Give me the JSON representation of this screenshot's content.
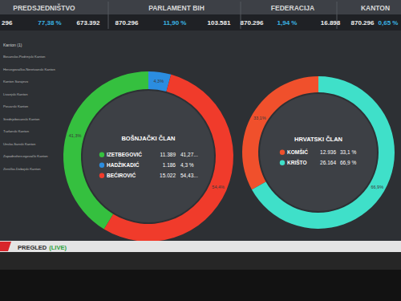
{
  "header": {
    "titles": [
      "PREDSJEDNIŠTVO",
      "PARLAMENT BIH",
      "FEDERACIJA",
      "KANTON"
    ],
    "cells": [
      "296",
      "77,38 %",
      "673.392",
      "870.296",
      "11,90 %",
      "103.581",
      "870.296",
      "1,94 %",
      "16.898",
      "870.296",
      "0,65 %"
    ]
  },
  "sidebar": {
    "title": "Kanton (1)",
    "items": [
      "Bosansko-Podrinjski Kanton",
      "Hercegovačko-Neretvanski Kanton",
      "Kanton Sarajevo",
      "Livanjski Kanton",
      "Posavski Kanton",
      "Srednjobosanski Kanton",
      "Tuzlanski Kanton",
      "Unsko-Sanski Kanton",
      "Zapadnohercegovački Kanton",
      "Zeničko-Dobojski Kanton"
    ]
  },
  "footer": {
    "label": "PREGLED",
    "status": "(LIVE)"
  },
  "chart_data": [
    {
      "type": "pie",
      "title": "BOŠNJAČKI ČLAN",
      "categories": [
        "IZETBEGOVIĆ",
        "HADŽIKADIĆ",
        "BEĆIROVIĆ"
      ],
      "values": [
        11389,
        1186,
        15022
      ],
      "value_labels": [
        "11.389",
        "1.186",
        "15.022"
      ],
      "colors": [
        "#35c03f",
        "#2b8de0",
        "#f03b2b"
      ],
      "percents": [
        41.27,
        4.3,
        54.43
      ],
      "percent_labels": [
        "41,27...",
        "4,3 %",
        "54,43..."
      ],
      "slice_labels": [
        "41,3%",
        "4,3%",
        "54,4%"
      ],
      "data_labels": true
    },
    {
      "type": "pie",
      "title": "HRVATSKI ČLAN",
      "categories": [
        "KOMŠIĆ",
        "KRIŠTO"
      ],
      "values": [
        12936,
        26164
      ],
      "value_labels": [
        "12.936",
        "26.164"
      ],
      "colors": [
        "#f0502c",
        "#3fe0c9"
      ],
      "percents": [
        33.1,
        66.9
      ],
      "percent_labels": [
        "33,1 %",
        "66,9 %"
      ],
      "slice_labels": [
        "33,1%",
        "66,9%"
      ],
      "data_labels": true
    }
  ]
}
